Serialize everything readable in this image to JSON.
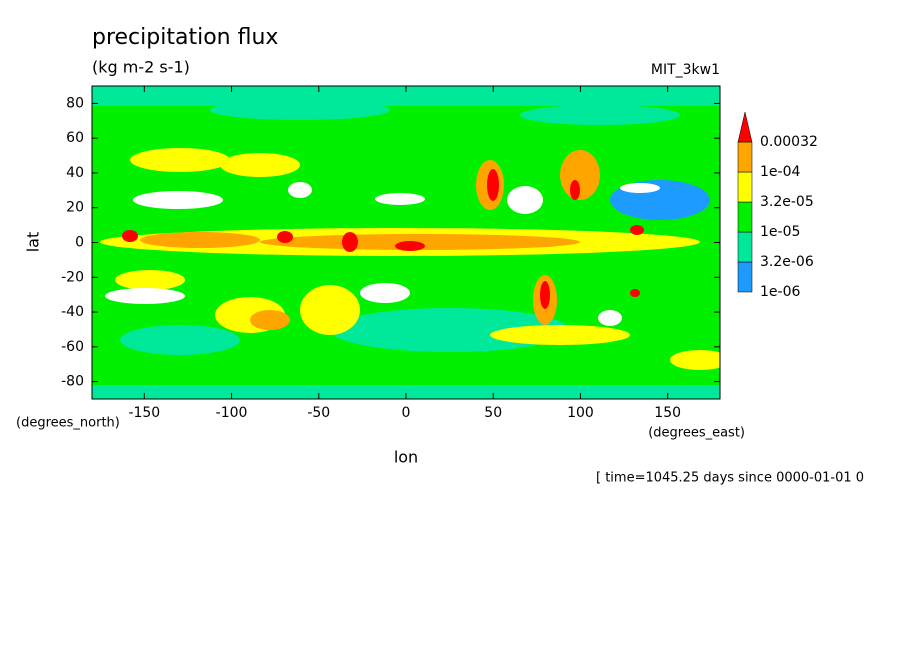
{
  "chart_data": {
    "type": "contour",
    "title": "precipitation flux",
    "subtitle": "(kg m-2 s-1)",
    "dataset": "MIT_3kw1",
    "xlabel": "lon",
    "ylabel": "lat",
    "x_unit": "(degrees_east)",
    "y_unit": "(degrees_north)",
    "footer": "[ time=1045.25 days since 0000-01-01 0",
    "xlim": [
      -180,
      180
    ],
    "xticks": [
      -150,
      -100,
      -50,
      0,
      50,
      100,
      150
    ],
    "ylim": [
      -90,
      90
    ],
    "yticks": [
      -80,
      -60,
      -40,
      -20,
      0,
      20,
      40,
      60,
      80
    ],
    "levels": [
      {
        "value": 1e-06,
        "label": "1e-06"
      },
      {
        "value": 3.2e-06,
        "label": "3.2e-06"
      },
      {
        "value": 1e-05,
        "label": "1e-05"
      },
      {
        "value": 3.2e-05,
        "label": "3.2e-05"
      },
      {
        "value": 0.0001,
        "label": "1e-04"
      },
      0.00032
    ],
    "colors": [
      "#1e9bff",
      "#00e89a",
      "#00f000",
      "#ffff00",
      "#ffa500",
      "#ff0000"
    ]
  }
}
